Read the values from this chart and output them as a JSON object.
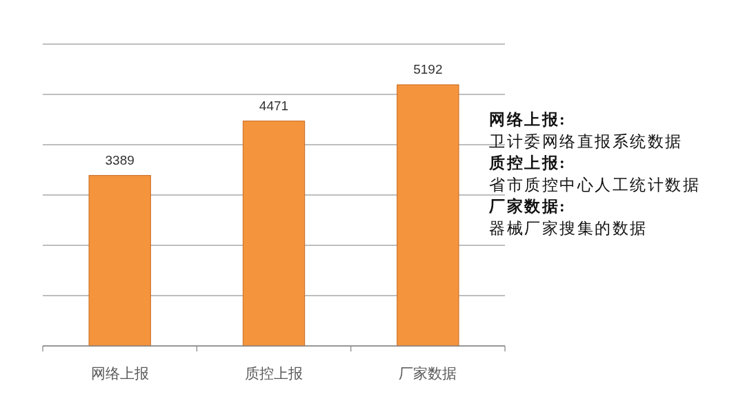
{
  "chart_data": {
    "type": "bar",
    "categories": [
      "网络上报",
      "质控上报",
      "厂家数据"
    ],
    "values": [
      3389,
      4471,
      5192
    ],
    "color": "#f4943c",
    "data_labels": true,
    "ylim": [
      0,
      6000
    ],
    "yticks": [
      {
        "value": 0,
        "label": null
      },
      {
        "value": 1000,
        "label": null
      },
      {
        "value": 2000,
        "label": null
      },
      {
        "value": 3000,
        "label": null
      },
      {
        "value": 4000,
        "label": null
      },
      {
        "value": 5000,
        "label": null
      },
      {
        "value": 6000,
        "label": null
      }
    ],
    "grid": "y",
    "tick_labels": "x",
    "annotations": [
      "网络上报:",
      "卫计委网络直报系统数据",
      "质控上报:",
      "省市质控中心人工统计数据",
      "厂家数据:",
      "器械厂家搜集的数据"
    ]
  }
}
